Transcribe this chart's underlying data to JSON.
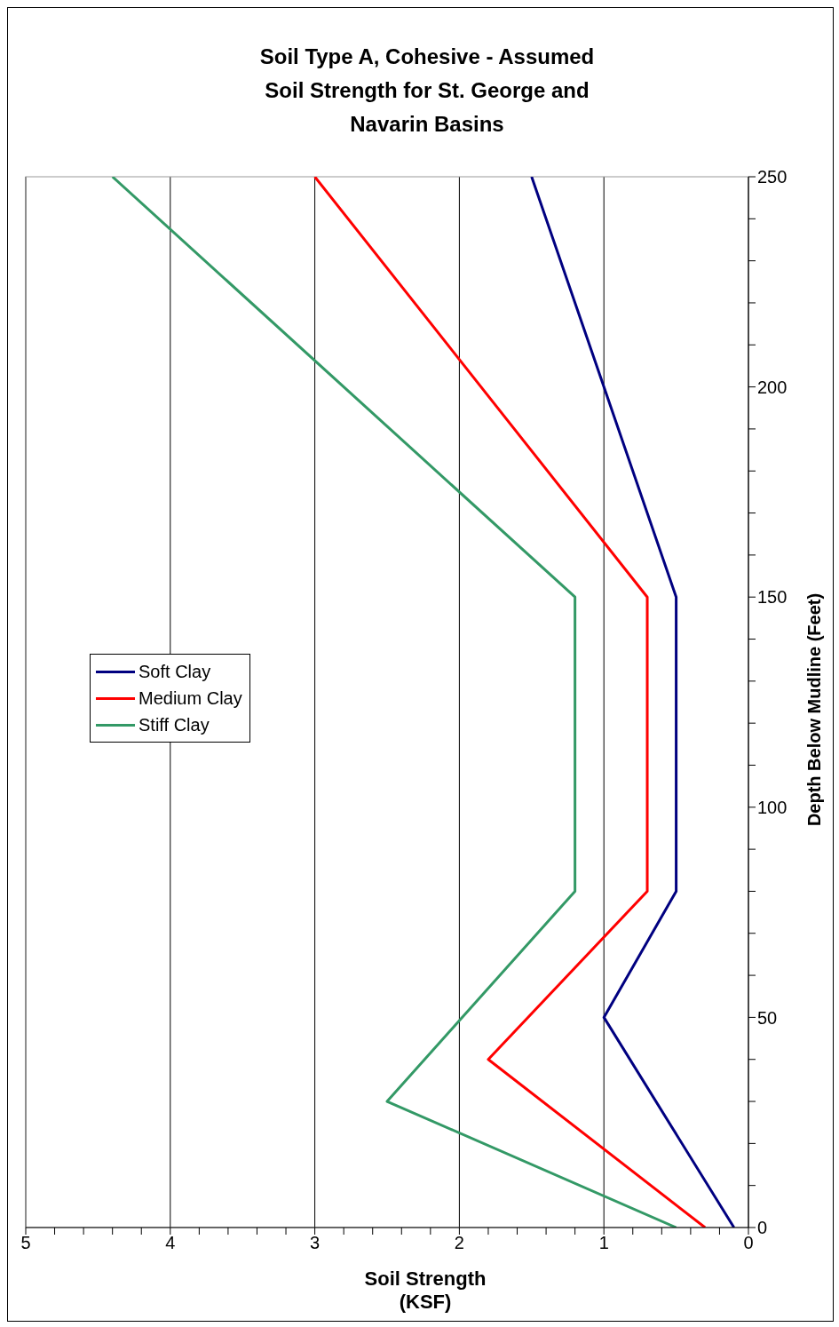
{
  "chart_data": {
    "type": "line",
    "title": "Soil Type A, Cohesive - Assumed Soil Strength for St. George and Navarin Basins",
    "xlabel": "Soil Strength (KSF)",
    "ylabel": "Depth Below Mudline (Feet)",
    "xlim": [
      5,
      0
    ],
    "xticks": [
      0,
      {
        "value": 0.2,
        "label": null
      },
      {
        "value": 0.4,
        "label": null
      },
      {
        "value": 0.6,
        "label": null
      },
      {
        "value": 0.8,
        "label": null
      },
      1,
      {
        "value": 1.2,
        "label": null
      },
      {
        "value": 1.4,
        "label": null
      },
      {
        "value": 1.6,
        "label": null
      },
      {
        "value": 1.8,
        "label": null
      },
      2,
      {
        "value": 2.2,
        "label": null
      },
      {
        "value": 2.4,
        "label": null
      },
      {
        "value": 2.6,
        "label": null
      },
      {
        "value": 2.8,
        "label": null
      },
      3,
      {
        "value": 3.2,
        "label": null
      },
      {
        "value": 3.4,
        "label": null
      },
      {
        "value": 3.6,
        "label": null
      },
      {
        "value": 3.8,
        "label": null
      },
      4,
      {
        "value": 4.2,
        "label": null
      },
      {
        "value": 4.4,
        "label": null
      },
      {
        "value": 4.6,
        "label": null
      },
      {
        "value": 4.8,
        "label": null
      },
      5
    ],
    "ylim": [
      0,
      250
    ],
    "yticks": [
      0,
      {
        "value": 10,
        "label": null
      },
      {
        "value": 20,
        "label": null
      },
      {
        "value": 30,
        "label": null
      },
      {
        "value": 40,
        "label": null
      },
      50,
      {
        "value": 60,
        "label": null
      },
      {
        "value": 70,
        "label": null
      },
      {
        "value": 80,
        "label": null
      },
      {
        "value": 90,
        "label": null
      },
      100,
      {
        "value": 110,
        "label": null
      },
      {
        "value": 120,
        "label": null
      },
      {
        "value": 130,
        "label": null
      },
      {
        "value": 140,
        "label": null
      },
      150,
      {
        "value": 160,
        "label": null
      },
      {
        "value": 170,
        "label": null
      },
      {
        "value": 180,
        "label": null
      },
      {
        "value": 190,
        "label": null
      },
      200,
      {
        "value": 210,
        "label": null
      },
      {
        "value": 220,
        "label": null
      },
      {
        "value": 230,
        "label": null
      },
      {
        "value": 240,
        "label": null
      },
      250
    ],
    "grid": "x",
    "legend": "left",
    "marker": "none",
    "line_style": "solid",
    "series": [
      {
        "name": "Soft Clay",
        "color": "#000080",
        "x": [
          0.1,
          1,
          0.5,
          0.5,
          1,
          1.5
        ],
        "values": [
          0,
          50,
          80,
          150,
          200,
          250
        ]
      },
      {
        "name": "Medium Clay",
        "color": "#ff0000",
        "x": [
          0.3,
          1.8,
          0.7,
          0.7,
          3
        ],
        "values": [
          0,
          40,
          80,
          150,
          250
        ]
      },
      {
        "name": "Stiff Clay",
        "color": "#339966",
        "x": [
          0.5,
          2.5,
          1.2,
          1.2,
          4.4
        ],
        "values": [
          0,
          30,
          80,
          150,
          250
        ]
      }
    ]
  }
}
